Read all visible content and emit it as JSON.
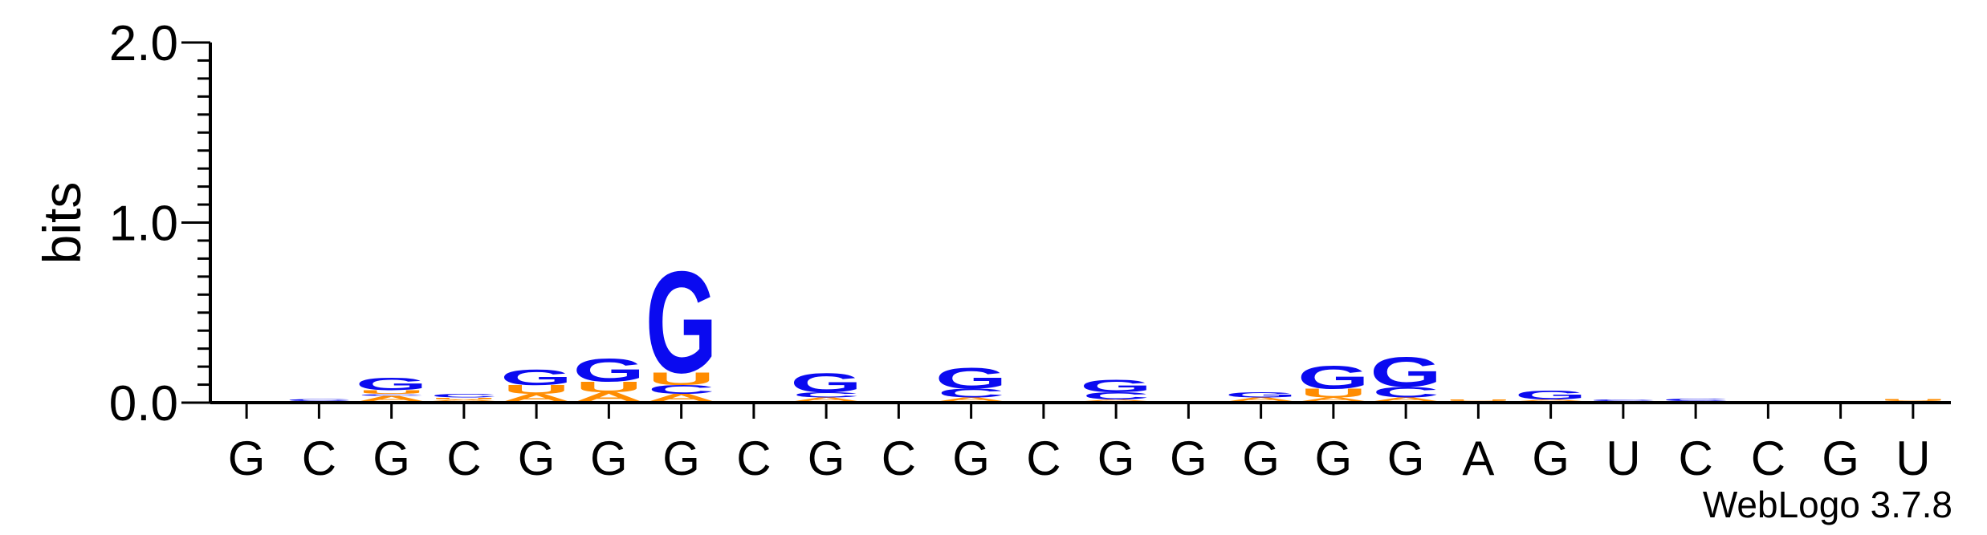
{
  "chart_data": {
    "type": "sequence-logo",
    "ylabel": "bits",
    "ylim": [
      0,
      2.0
    ],
    "yticks": [
      "0.0",
      "1.0",
      "2.0"
    ],
    "categories": [
      "G",
      "C",
      "G",
      "C",
      "G",
      "G",
      "G",
      "C",
      "G",
      "C",
      "G",
      "C",
      "G",
      "G",
      "G",
      "G",
      "G",
      "A",
      "G",
      "U",
      "C",
      "C",
      "G",
      "U"
    ],
    "colors": {
      "G": "#0a0af0",
      "C": "#0a0af0",
      "A": "#ff8c00",
      "U": "#ff8c00"
    },
    "stacks": [
      [],
      [
        {
          "letter": "C",
          "bits": 0.012
        }
      ],
      [
        {
          "letter": "A",
          "bits": 0.03
        },
        {
          "letter": "C",
          "bits": 0.01
        },
        {
          "letter": "U",
          "bits": 0.02
        },
        {
          "letter": "G",
          "bits": 0.07
        }
      ],
      [
        {
          "letter": "A",
          "bits": 0.01
        },
        {
          "letter": "U",
          "bits": 0.01
        },
        {
          "letter": "C",
          "bits": 0.02
        }
      ],
      [
        {
          "letter": "A",
          "bits": 0.04
        },
        {
          "letter": "U",
          "bits": 0.05
        },
        {
          "letter": "G",
          "bits": 0.09
        }
      ],
      [
        {
          "letter": "A",
          "bits": 0.05
        },
        {
          "letter": "U",
          "bits": 0.06
        },
        {
          "letter": "G",
          "bits": 0.13
        }
      ],
      [
        {
          "letter": "A",
          "bits": 0.04
        },
        {
          "letter": "C",
          "bits": 0.05
        },
        {
          "letter": "U",
          "bits": 0.07
        },
        {
          "letter": "G",
          "bits": 0.58
        }
      ],
      [],
      [
        {
          "letter": "A",
          "bits": 0.02
        },
        {
          "letter": "C",
          "bits": 0.03
        },
        {
          "letter": "G",
          "bits": 0.11
        }
      ],
      [],
      [
        {
          "letter": "A",
          "bits": 0.02
        },
        {
          "letter": "C",
          "bits": 0.05
        },
        {
          "letter": "G",
          "bits": 0.12
        }
      ],
      [],
      [
        {
          "letter": "A",
          "bits": 0.01
        },
        {
          "letter": "C",
          "bits": 0.04
        },
        {
          "letter": "G",
          "bits": 0.07
        }
      ],
      [],
      [
        {
          "letter": "A",
          "bits": 0.02
        },
        {
          "letter": "G",
          "bits": 0.03
        }
      ],
      [
        {
          "letter": "A",
          "bits": 0.02
        },
        {
          "letter": "U",
          "bits": 0.05
        },
        {
          "letter": "G",
          "bits": 0.13
        }
      ],
      [
        {
          "letter": "A",
          "bits": 0.02
        },
        {
          "letter": "C",
          "bits": 0.06
        },
        {
          "letter": "G",
          "bits": 0.17
        }
      ],
      [
        {
          "letter": "U",
          "bits": 0.01
        }
      ],
      [
        {
          "letter": "A",
          "bits": 0.01
        },
        {
          "letter": "G",
          "bits": 0.05
        }
      ],
      [
        {
          "letter": "C",
          "bits": 0.01
        }
      ],
      [
        {
          "letter": "C",
          "bits": 0.015
        }
      ],
      [],
      [],
      [
        {
          "letter": "U",
          "bits": 0.012
        }
      ]
    ]
  },
  "credit": "WebLogo 3.7.8"
}
